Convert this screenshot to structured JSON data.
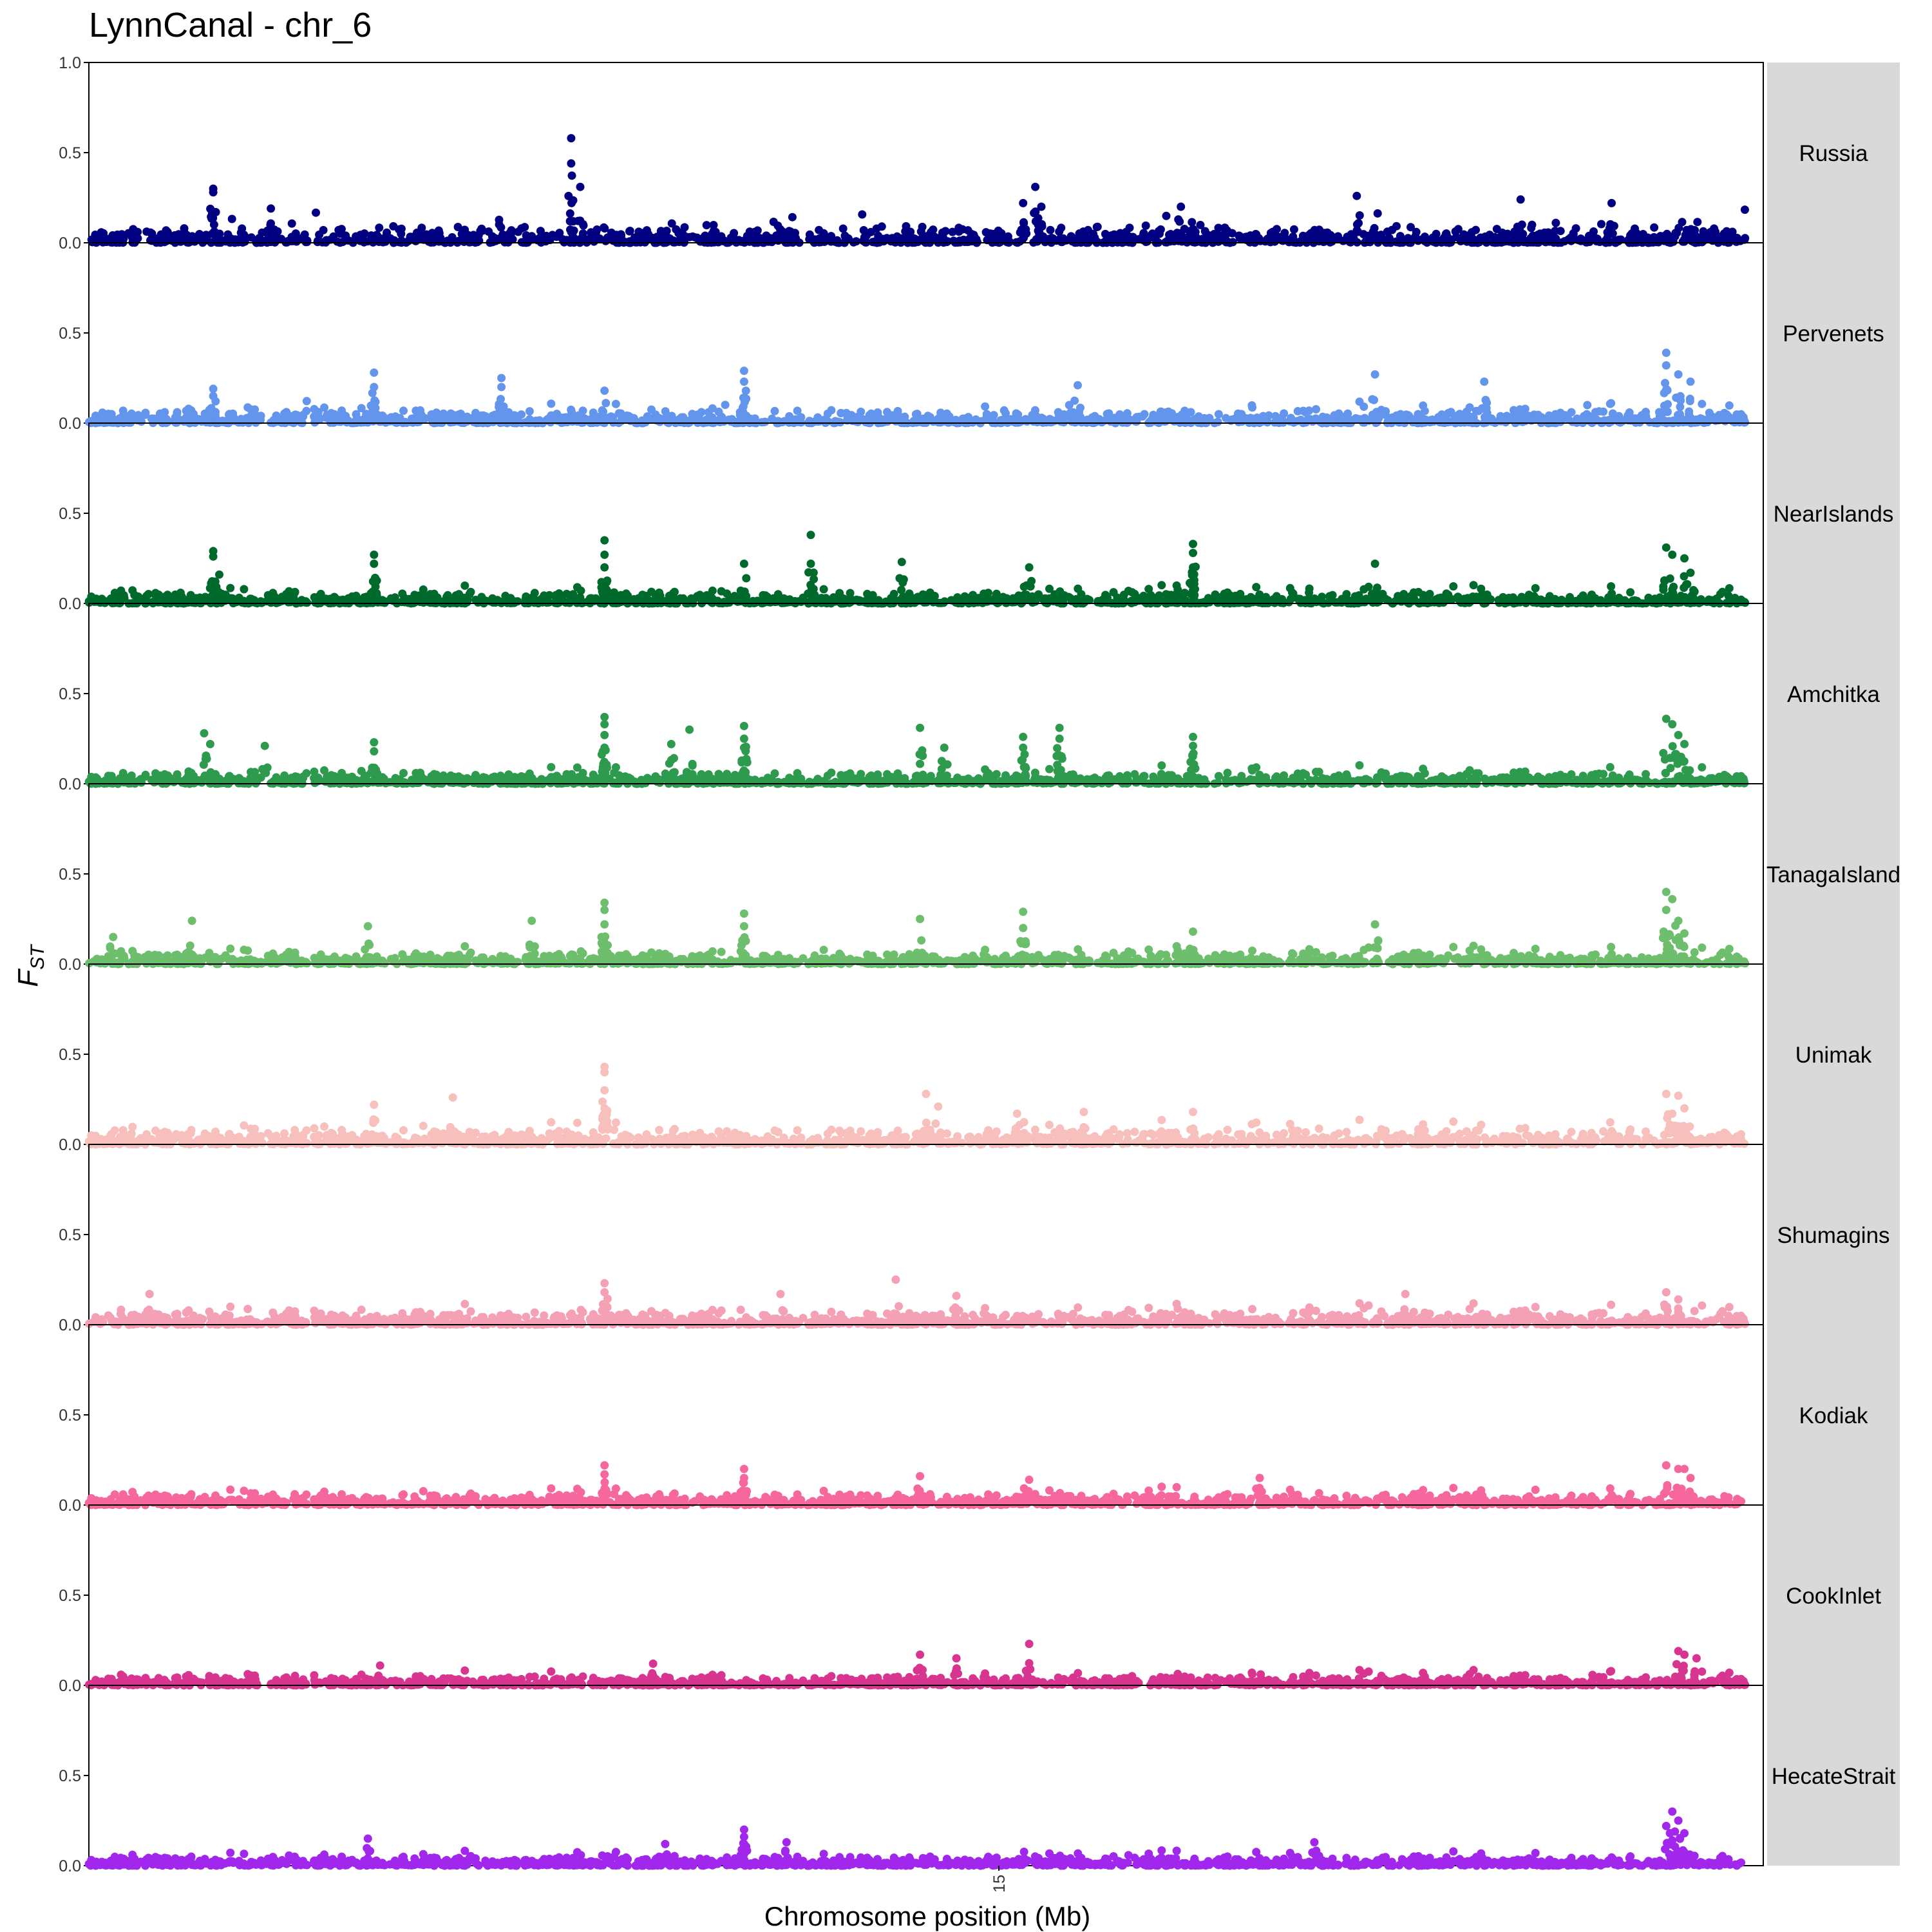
{
  "chart_data": {
    "type": "scatter",
    "title": "LynnCanal - chr_6",
    "xlabel": "Chromosome position (Mb)",
    "ylabel_main": "F",
    "ylabel_sub": "ST",
    "xlim": [
      0,
      27.6
    ],
    "ylim": [
      0.0,
      1.0
    ],
    "yticks": [
      0.0,
      0.5,
      1.0
    ],
    "ytick_labels": [
      "0.0",
      "0.5",
      "1.0"
    ],
    "xticks": [
      15
    ],
    "xtick_labels": [
      "15"
    ],
    "grid": false,
    "facet_strip_position": "right",
    "gaps": [
      [
        3.6,
        3.7
      ],
      [
        27.3,
        27.6
      ]
    ],
    "panels": [
      {
        "name": "Russia",
        "color": "#000080",
        "baseline": 0.045,
        "peaks": [
          [
            2.05,
            0.3
          ],
          [
            2.05,
            0.28
          ],
          [
            7.95,
            0.58
          ],
          [
            7.95,
            0.44
          ],
          [
            8.1,
            0.31
          ],
          [
            15.6,
            0.31
          ],
          [
            15.4,
            0.22
          ],
          [
            15.7,
            0.2
          ],
          [
            18.0,
            0.2
          ],
          [
            20.9,
            0.26
          ],
          [
            23.6,
            0.24
          ],
          [
            25.1,
            0.22
          ],
          [
            3.0,
            0.19
          ]
        ]
      },
      {
        "name": "Pervenets",
        "color": "#6495ED",
        "baseline": 0.035,
        "peaks": [
          [
            2.05,
            0.19
          ],
          [
            2.05,
            0.15
          ],
          [
            4.7,
            0.28
          ],
          [
            4.7,
            0.2
          ],
          [
            6.8,
            0.25
          ],
          [
            6.8,
            0.2
          ],
          [
            8.5,
            0.18
          ],
          [
            10.8,
            0.29
          ],
          [
            10.8,
            0.23
          ],
          [
            16.3,
            0.21
          ],
          [
            21.2,
            0.27
          ],
          [
            23.0,
            0.23
          ],
          [
            26.0,
            0.39
          ],
          [
            26.0,
            0.32
          ],
          [
            26.2,
            0.27
          ],
          [
            26.4,
            0.23
          ],
          [
            24.7,
            0.1
          ]
        ]
      },
      {
        "name": "NearIslands",
        "color": "#006A2D",
        "baseline": 0.03,
        "peaks": [
          [
            2.05,
            0.29
          ],
          [
            2.05,
            0.26
          ],
          [
            2.15,
            0.16
          ],
          [
            4.7,
            0.27
          ],
          [
            4.7,
            0.22
          ],
          [
            8.5,
            0.35
          ],
          [
            8.5,
            0.27
          ],
          [
            8.5,
            0.2
          ],
          [
            11.9,
            0.38
          ],
          [
            11.9,
            0.22
          ],
          [
            10.8,
            0.22
          ],
          [
            13.4,
            0.23
          ],
          [
            15.5,
            0.2
          ],
          [
            18.2,
            0.33
          ],
          [
            18.2,
            0.28
          ],
          [
            18.2,
            0.2
          ],
          [
            21.2,
            0.22
          ],
          [
            26.0,
            0.31
          ],
          [
            26.1,
            0.27
          ],
          [
            26.3,
            0.25
          ],
          [
            26.4,
            0.17
          ]
        ]
      },
      {
        "name": "Amchitka",
        "color": "#2E9A4E",
        "baseline": 0.03,
        "peaks": [
          [
            1.9,
            0.28
          ],
          [
            2.0,
            0.22
          ],
          [
            2.9,
            0.21
          ],
          [
            4.7,
            0.23
          ],
          [
            4.7,
            0.18
          ],
          [
            8.5,
            0.37
          ],
          [
            8.5,
            0.33
          ],
          [
            8.5,
            0.27
          ],
          [
            8.5,
            0.2
          ],
          [
            9.6,
            0.22
          ],
          [
            9.9,
            0.3
          ],
          [
            10.8,
            0.32
          ],
          [
            10.8,
            0.25
          ],
          [
            10.8,
            0.2
          ],
          [
            13.7,
            0.31
          ],
          [
            14.1,
            0.2
          ],
          [
            15.4,
            0.26
          ],
          [
            15.4,
            0.2
          ],
          [
            16.0,
            0.31
          ],
          [
            16.0,
            0.25
          ],
          [
            18.2,
            0.26
          ],
          [
            18.2,
            0.21
          ],
          [
            26.0,
            0.36
          ],
          [
            26.1,
            0.33
          ],
          [
            26.2,
            0.27
          ],
          [
            26.3,
            0.22
          ]
        ]
      },
      {
        "name": "TanagaIsland",
        "color": "#6DBE6D",
        "baseline": 0.03,
        "peaks": [
          [
            1.7,
            0.24
          ],
          [
            4.6,
            0.21
          ],
          [
            7.3,
            0.24
          ],
          [
            8.5,
            0.34
          ],
          [
            8.5,
            0.3
          ],
          [
            8.5,
            0.22
          ],
          [
            10.8,
            0.28
          ],
          [
            10.8,
            0.21
          ],
          [
            13.7,
            0.25
          ],
          [
            15.4,
            0.29
          ],
          [
            15.4,
            0.2
          ],
          [
            18.2,
            0.18
          ],
          [
            21.2,
            0.22
          ],
          [
            26.0,
            0.4
          ],
          [
            26.1,
            0.36
          ],
          [
            26.0,
            0.3
          ],
          [
            26.2,
            0.24
          ],
          [
            26.3,
            0.17
          ],
          [
            0.4,
            0.15
          ]
        ]
      },
      {
        "name": "Unimak",
        "color": "#F7C0BD",
        "baseline": 0.04,
        "peaks": [
          [
            4.7,
            0.22
          ],
          [
            6.0,
            0.26
          ],
          [
            8.5,
            0.43
          ],
          [
            8.5,
            0.4
          ],
          [
            8.5,
            0.3
          ],
          [
            8.5,
            0.2
          ],
          [
            13.8,
            0.28
          ],
          [
            14.0,
            0.21
          ],
          [
            15.3,
            0.17
          ],
          [
            16.4,
            0.18
          ],
          [
            18.2,
            0.18
          ],
          [
            26.0,
            0.28
          ],
          [
            26.2,
            0.27
          ],
          [
            26.3,
            0.2
          ],
          [
            26.1,
            0.17
          ]
        ]
      },
      {
        "name": "Shumagins",
        "color": "#F4A0B5",
        "baseline": 0.035,
        "peaks": [
          [
            1.0,
            0.17
          ],
          [
            8.5,
            0.23
          ],
          [
            8.5,
            0.18
          ],
          [
            13.3,
            0.25
          ],
          [
            11.4,
            0.17
          ],
          [
            14.3,
            0.16
          ],
          [
            21.7,
            0.17
          ],
          [
            26.0,
            0.18
          ],
          [
            26.2,
            0.14
          ]
        ]
      },
      {
        "name": "Kodiak",
        "color": "#F5679D",
        "baseline": 0.03,
        "peaks": [
          [
            8.5,
            0.22
          ],
          [
            8.5,
            0.17
          ],
          [
            10.8,
            0.2
          ],
          [
            10.8,
            0.15
          ],
          [
            13.7,
            0.16
          ],
          [
            15.5,
            0.14
          ],
          [
            19.3,
            0.15
          ],
          [
            26.0,
            0.22
          ],
          [
            26.2,
            0.2
          ],
          [
            26.3,
            0.2
          ],
          [
            26.4,
            0.15
          ]
        ]
      },
      {
        "name": "CookInlet",
        "color": "#D83591",
        "baseline": 0.025,
        "peaks": [
          [
            15.5,
            0.23
          ],
          [
            13.7,
            0.17
          ],
          [
            14.3,
            0.15
          ],
          [
            9.3,
            0.12
          ],
          [
            26.2,
            0.19
          ],
          [
            26.3,
            0.17
          ],
          [
            26.5,
            0.15
          ],
          [
            4.8,
            0.11
          ]
        ]
      },
      {
        "name": "HecateStrait",
        "color": "#A127EC",
        "baseline": 0.025,
        "peaks": [
          [
            10.8,
            0.2
          ],
          [
            10.8,
            0.16
          ],
          [
            10.8,
            0.12
          ],
          [
            11.5,
            0.13
          ],
          [
            4.6,
            0.15
          ],
          [
            9.5,
            0.12
          ],
          [
            20.2,
            0.13
          ],
          [
            26.1,
            0.3
          ],
          [
            26.0,
            0.22
          ],
          [
            26.2,
            0.25
          ],
          [
            26.3,
            0.18
          ],
          [
            26.1,
            0.14
          ]
        ]
      }
    ]
  }
}
